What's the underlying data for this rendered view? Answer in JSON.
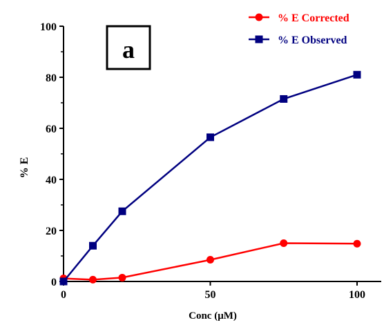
{
  "chart_data": {
    "type": "line",
    "panel_label": "a",
    "xlabel": "Conc (μM)",
    "ylabel": "% E",
    "xlim": [
      0,
      100
    ],
    "ylim": [
      0,
      100
    ],
    "x_ticks": [
      0,
      50,
      100
    ],
    "y_ticks": [
      0,
      20,
      40,
      60,
      80,
      100
    ],
    "grid": false,
    "legend_position": "top-right",
    "series": [
      {
        "name": "% E Corrected",
        "color": "#ff0000",
        "marker": "circle",
        "x": [
          0,
          10,
          20,
          50,
          75,
          100
        ],
        "y": [
          1.2,
          0.7,
          1.5,
          8.5,
          15,
          14.8
        ]
      },
      {
        "name": "% E Observed",
        "color": "#000080",
        "marker": "square",
        "x": [
          0,
          10,
          20,
          50,
          75,
          100
        ],
        "y": [
          0,
          14,
          27.5,
          56.5,
          71.5,
          81
        ]
      }
    ]
  }
}
